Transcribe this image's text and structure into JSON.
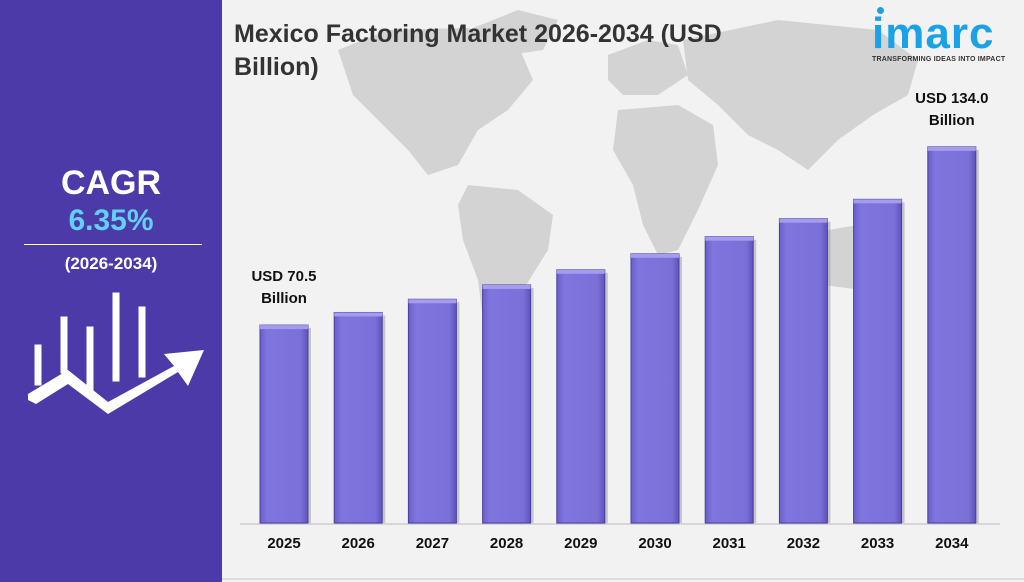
{
  "sidebar": {
    "cagr_label": "CAGR",
    "cagr_value": "6.35%",
    "cagr_period": "(2026-2034)",
    "icon": "growth-chart-arrow-icon",
    "background_color": "#4b3aa8",
    "value_color": "#62d0f5"
  },
  "header": {
    "title_line1": "Mexico Factoring Market 2026-2034 (USD",
    "title_line2": "Billion)"
  },
  "logo": {
    "word": "imarc",
    "tagline": "TRANSFORMING IDEAS INTO IMPACT",
    "color": "#1ba1e5"
  },
  "chart_data": {
    "type": "bar",
    "title": "Mexico Factoring Market 2026-2034 (USD Billion)",
    "categories": [
      "2025",
      "2026",
      "2027",
      "2028",
      "2029",
      "2030",
      "2031",
      "2032",
      "2033",
      "2034"
    ],
    "values": [
      70.5,
      75.0,
      79.7,
      84.8,
      90.2,
      95.9,
      102.0,
      108.4,
      115.3,
      134.0
    ],
    "ylim": [
      0,
      140
    ],
    "bar_color": "#7b6fd8",
    "grid": false,
    "annotations": [
      {
        "category": "2025",
        "line1": "USD 70.5",
        "line2": "Billion"
      },
      {
        "category": "2034",
        "line1": "USD 134.0",
        "line2": "Billion"
      }
    ]
  }
}
